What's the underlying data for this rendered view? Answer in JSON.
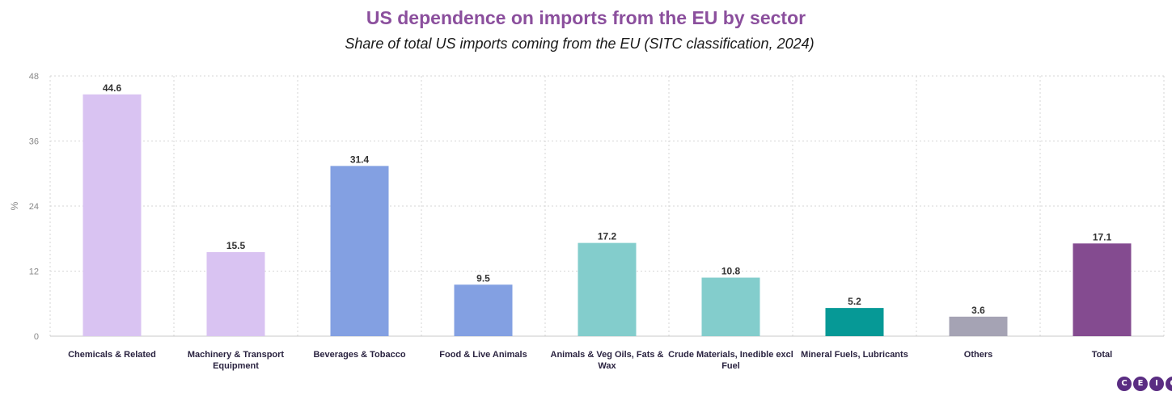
{
  "chart_data": {
    "type": "bar",
    "title": "US dependence on imports from the EU by sector",
    "subtitle": "Share of total US imports coming from the EU (SITC classification, 2024)",
    "ylabel": "%",
    "xlabel": "",
    "ylim": [
      0,
      48
    ],
    "yticks": [
      "0",
      "12",
      "24",
      "36",
      "48"
    ],
    "grid": true,
    "categories": [
      "Chemicals & Related",
      "Machinery & Transport Equipment",
      "Beverages & Tobacco",
      "Food & Live Animals",
      "Animals & Veg Oils, Fats & Wax",
      "Crude Materials, Inedible excl Fuel",
      "Mineral Fuels, Lubricants",
      "Others",
      "Total"
    ],
    "category_lines": [
      [
        "Chemicals & Related"
      ],
      [
        "Machinery & Transport",
        "Equipment"
      ],
      [
        "Beverages & Tobacco"
      ],
      [
        "Food & Live Animals"
      ],
      [
        "Animals & Veg Oils, Fats &",
        "Wax"
      ],
      [
        "Crude Materials, Inedible excl",
        "Fuel"
      ],
      [
        "Mineral Fuels, Lubricants"
      ],
      [
        "Others"
      ],
      [
        "Total"
      ]
    ],
    "values": [
      44.6,
      15.5,
      31.4,
      9.5,
      17.2,
      10.8,
      5.2,
      3.6,
      17.1
    ],
    "value_labels": [
      "44.6",
      "15.5",
      "31.4",
      "9.5",
      "17.2",
      "10.8",
      "5.2",
      "3.6",
      "17.1"
    ],
    "colors": [
      "#d9c3f2",
      "#d9c3f2",
      "#83a0e2",
      "#83a0e2",
      "#83cdcc",
      "#83cdcc",
      "#069996",
      "#a5a3b4",
      "#844b90"
    ]
  },
  "logo": {
    "letters": [
      "C",
      "E",
      "I",
      "C"
    ],
    "color": "#5a2d82"
  }
}
